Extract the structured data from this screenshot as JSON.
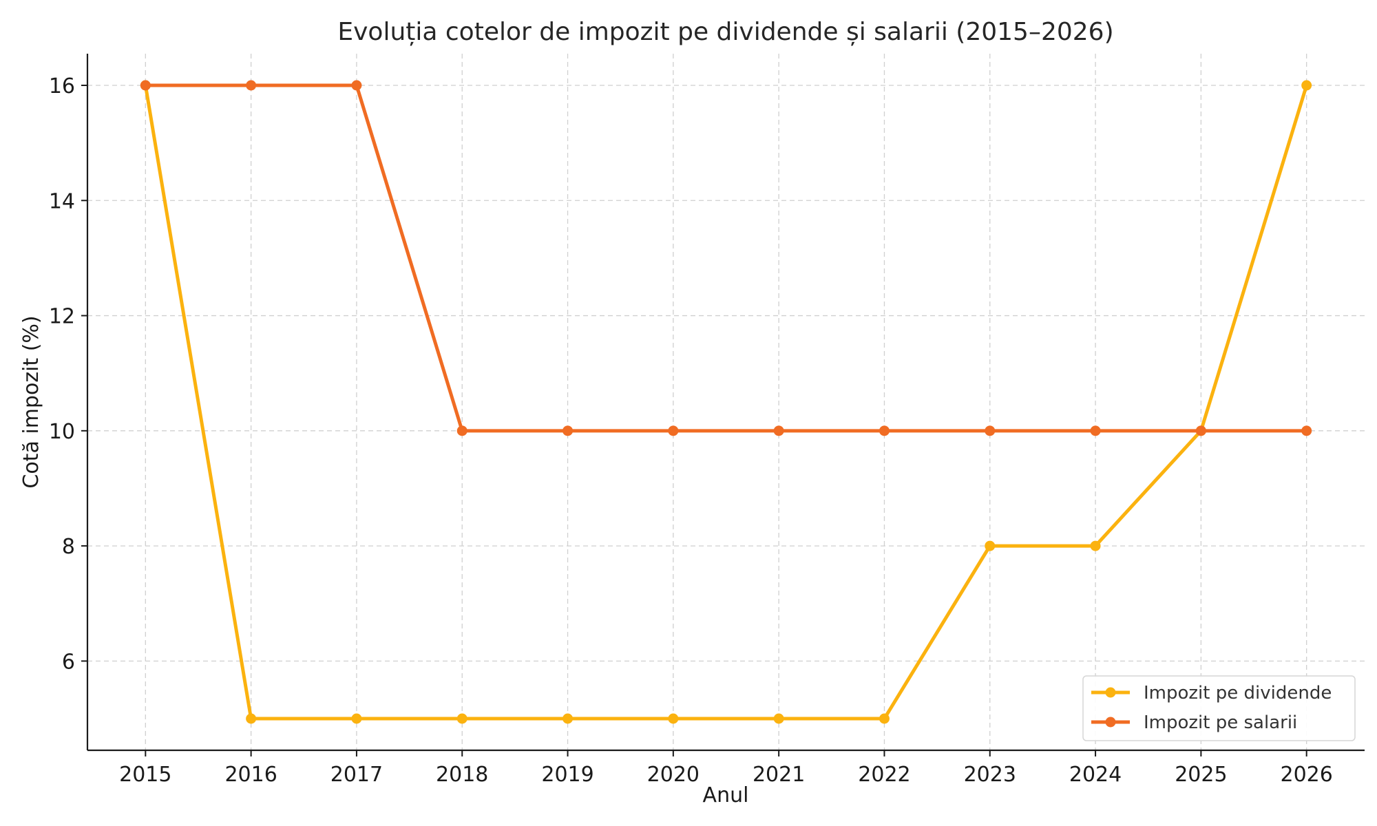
{
  "chart_data": {
    "type": "line",
    "title": "Evoluția cotelor de impozit pe dividende și salarii (2015–2026)",
    "xlabel": "Anul",
    "ylabel": "Cotă impozit (%)",
    "x": [
      2015,
      2016,
      2017,
      2018,
      2019,
      2020,
      2021,
      2022,
      2023,
      2024,
      2025,
      2026
    ],
    "xticks": [
      "2015",
      "2016",
      "2017",
      "2018",
      "2019",
      "2020",
      "2021",
      "2022",
      "2023",
      "2024",
      "2025",
      "2026"
    ],
    "yticks": [
      6,
      8,
      10,
      12,
      14,
      16
    ],
    "ylim": [
      4.45,
      16.55
    ],
    "xlim": [
      2014.45,
      2026.55
    ],
    "grid": true,
    "legend_position": "lower-right",
    "series": [
      {
        "name": "Impozit pe dividende",
        "color": "#FBB20F",
        "values": [
          16,
          5,
          5,
          5,
          5,
          5,
          5,
          5,
          8,
          8,
          10,
          16
        ]
      },
      {
        "name": "Impozit pe salarii",
        "color": "#F06C23",
        "values": [
          16,
          16,
          16,
          10,
          10,
          10,
          10,
          10,
          10,
          10,
          10,
          10
        ]
      }
    ]
  }
}
